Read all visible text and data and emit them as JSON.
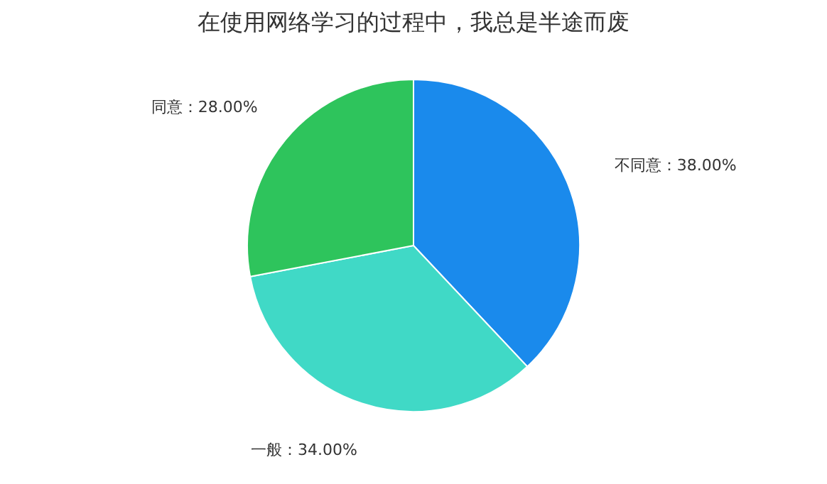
{
  "chart_data": {
    "type": "pie",
    "title": "在使用网络学习的过程中，我总是半途而废",
    "categories": [
      "不同意",
      "一般",
      "同意"
    ],
    "values": [
      38,
      34,
      28
    ],
    "value_labels": [
      "：38.00%",
      "：34.00%",
      "：28.00%"
    ],
    "colors": [
      "#1a8aec",
      "#40d9c6",
      "#2ec45c"
    ],
    "legend": false
  }
}
